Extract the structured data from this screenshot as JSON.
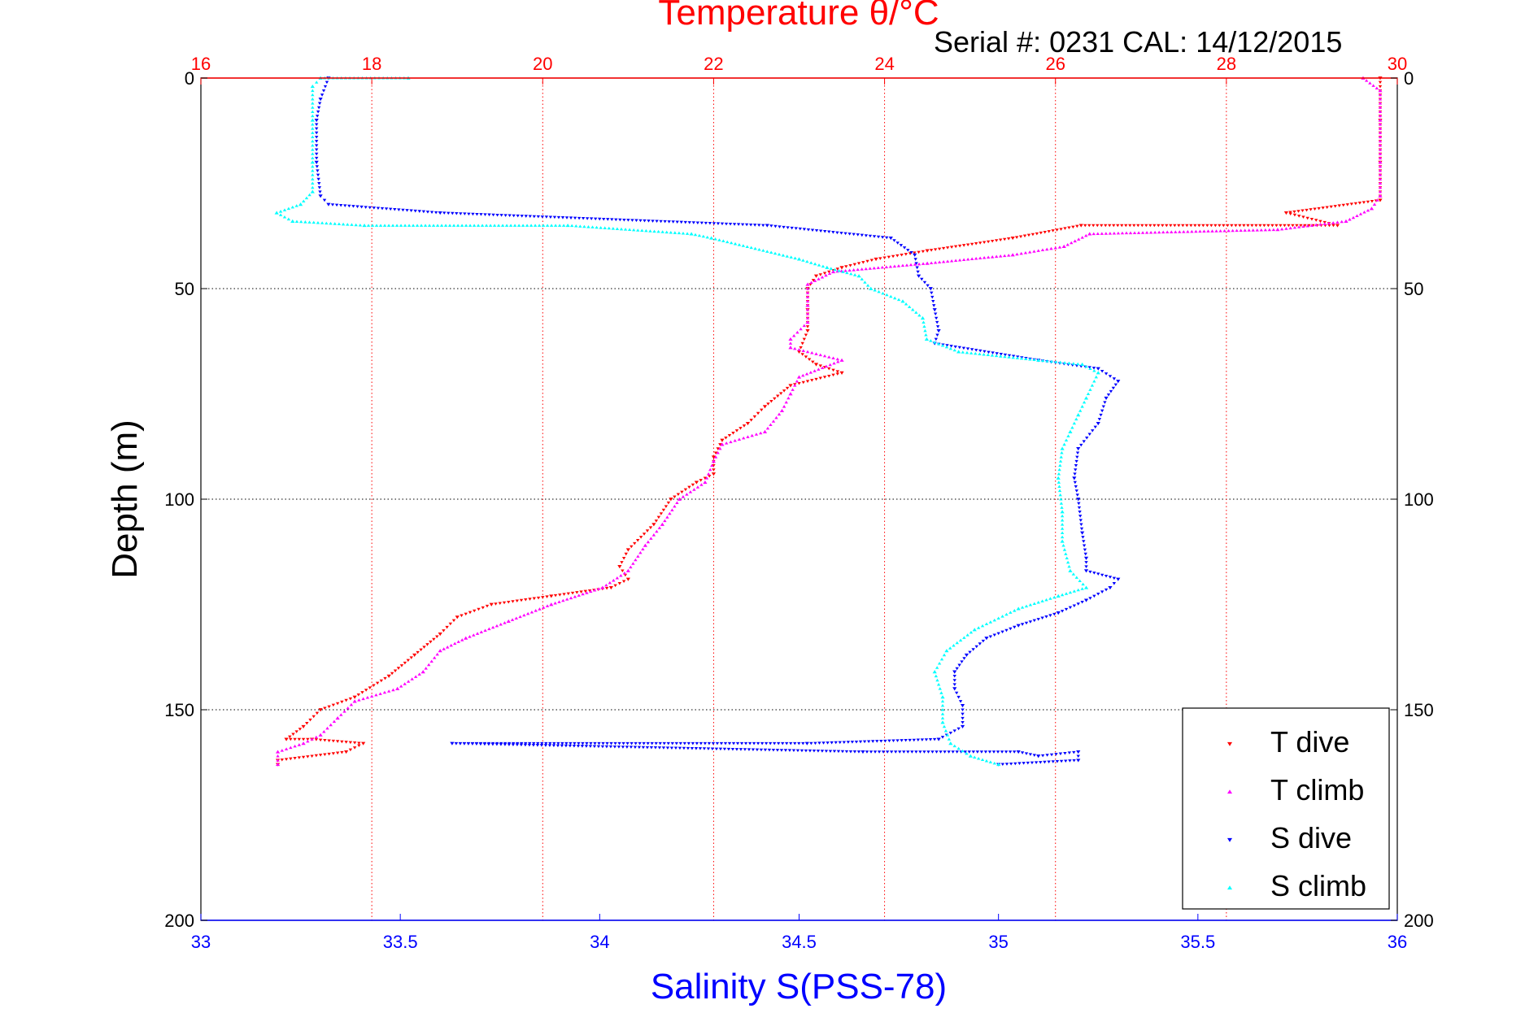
{
  "chart_data": {
    "type": "scatter",
    "title": "Temperature θ/°C",
    "subtitle": "Serial #: 0231  CAL: 14/12/2015",
    "xlabel": "Salinity S(PSS-78)",
    "ylabel": "Depth (m)",
    "x_salinity": {
      "range": [
        33,
        36
      ],
      "ticks": [
        "33",
        "33.5",
        "34",
        "34.5",
        "35",
        "35.5",
        "36"
      ],
      "tick_values": [
        33,
        33.5,
        34,
        34.5,
        35,
        35.5,
        36
      ],
      "color": "#0000ff"
    },
    "x_temperature": {
      "range": [
        16,
        30
      ],
      "ticks": [
        "16",
        "18",
        "20",
        "22",
        "24",
        "26",
        "28",
        "30"
      ],
      "tick_values": [
        16,
        18,
        20,
        22,
        24,
        26,
        28,
        30
      ],
      "color": "#ff0000"
    },
    "y": {
      "range": [
        0,
        200
      ],
      "reversed": true,
      "ticks": [
        "0",
        "50",
        "100",
        "150",
        "200"
      ],
      "tick_values": [
        0,
        50,
        100,
        150,
        200
      ]
    },
    "grid": true,
    "legend_position": "bottom-right",
    "series": [
      {
        "name": "T dive",
        "axis": "temperature",
        "color": "#ff0000",
        "marker": "triangle-down",
        "points": [
          [
            29.8,
            0
          ],
          [
            29.8,
            10
          ],
          [
            29.8,
            20
          ],
          [
            29.8,
            29
          ],
          [
            28.7,
            32
          ],
          [
            29.3,
            35
          ],
          [
            26.3,
            35
          ],
          [
            25.5,
            38
          ],
          [
            24.5,
            41
          ],
          [
            23.9,
            43
          ],
          [
            23.5,
            45
          ],
          [
            23.2,
            47
          ],
          [
            23.1,
            50
          ],
          [
            23.1,
            55
          ],
          [
            23.1,
            60
          ],
          [
            23.0,
            65
          ],
          [
            23.2,
            68
          ],
          [
            23.5,
            70
          ],
          [
            22.9,
            73
          ],
          [
            22.6,
            78
          ],
          [
            22.4,
            82
          ],
          [
            22.1,
            86
          ],
          [
            22.0,
            90
          ],
          [
            22.0,
            94
          ],
          [
            21.8,
            96
          ],
          [
            21.5,
            100
          ],
          [
            21.3,
            106
          ],
          [
            21.0,
            112
          ],
          [
            20.9,
            116
          ],
          [
            21.0,
            119
          ],
          [
            20.8,
            121
          ],
          [
            20.1,
            123
          ],
          [
            19.4,
            125
          ],
          [
            19.0,
            128
          ],
          [
            18.8,
            132
          ],
          [
            18.5,
            137
          ],
          [
            18.2,
            142
          ],
          [
            17.8,
            147
          ],
          [
            17.4,
            150
          ],
          [
            17.2,
            154
          ],
          [
            17.0,
            157
          ],
          [
            17.3,
            157
          ],
          [
            17.9,
            158
          ],
          [
            17.7,
            160
          ],
          [
            16.9,
            162
          ],
          [
            16.9,
            163
          ]
        ]
      },
      {
        "name": "T climb",
        "axis": "temperature",
        "color": "#ff00ff",
        "marker": "triangle-up",
        "points": [
          [
            16.9,
            163
          ],
          [
            16.9,
            160
          ],
          [
            17.2,
            158
          ],
          [
            17.4,
            156
          ],
          [
            17.6,
            152
          ],
          [
            17.8,
            148
          ],
          [
            18.3,
            145
          ],
          [
            18.6,
            141
          ],
          [
            18.8,
            136
          ],
          [
            19.1,
            133
          ],
          [
            19.6,
            129
          ],
          [
            20.1,
            125
          ],
          [
            20.7,
            121
          ],
          [
            21.0,
            117
          ],
          [
            21.2,
            111
          ],
          [
            21.4,
            106
          ],
          [
            21.6,
            100
          ],
          [
            21.9,
            96
          ],
          [
            22.0,
            91
          ],
          [
            22.1,
            87
          ],
          [
            22.6,
            84
          ],
          [
            22.8,
            79
          ],
          [
            22.9,
            75
          ],
          [
            23.0,
            71
          ],
          [
            23.5,
            67
          ],
          [
            22.9,
            64
          ],
          [
            22.9,
            62
          ],
          [
            23.1,
            58
          ],
          [
            23.1,
            54
          ],
          [
            23.1,
            49
          ],
          [
            23.4,
            46
          ],
          [
            24.5,
            44
          ],
          [
            25.5,
            42
          ],
          [
            26.1,
            40
          ],
          [
            26.4,
            37
          ],
          [
            28.6,
            36
          ],
          [
            29.4,
            34
          ],
          [
            29.7,
            31
          ],
          [
            29.8,
            28
          ],
          [
            29.8,
            20
          ],
          [
            29.8,
            10
          ],
          [
            29.8,
            3
          ],
          [
            29.6,
            0
          ]
        ]
      },
      {
        "name": "S dive",
        "axis": "salinity",
        "color": "#0000ff",
        "marker": "triangle-down",
        "points": [
          [
            33.32,
            0
          ],
          [
            33.3,
            5
          ],
          [
            33.29,
            10
          ],
          [
            33.29,
            20
          ],
          [
            33.3,
            28
          ],
          [
            33.32,
            30
          ],
          [
            33.6,
            32
          ],
          [
            34.42,
            35
          ],
          [
            34.73,
            38
          ],
          [
            34.79,
            42
          ],
          [
            34.8,
            47
          ],
          [
            34.83,
            50
          ],
          [
            34.84,
            55
          ],
          [
            34.85,
            60
          ],
          [
            34.84,
            63
          ],
          [
            35.1,
            67
          ],
          [
            35.25,
            69
          ],
          [
            35.3,
            72
          ],
          [
            35.27,
            76
          ],
          [
            35.25,
            82
          ],
          [
            35.2,
            88
          ],
          [
            35.19,
            95
          ],
          [
            35.2,
            100
          ],
          [
            35.21,
            108
          ],
          [
            35.22,
            114
          ],
          [
            35.22,
            117
          ],
          [
            35.3,
            119
          ],
          [
            35.28,
            121
          ],
          [
            35.22,
            124
          ],
          [
            35.15,
            127
          ],
          [
            35.05,
            130
          ],
          [
            34.97,
            133
          ],
          [
            34.92,
            137
          ],
          [
            34.89,
            141
          ],
          [
            34.89,
            145
          ],
          [
            34.91,
            149
          ],
          [
            34.91,
            154
          ],
          [
            34.85,
            157
          ],
          [
            34.52,
            158
          ],
          [
            33.63,
            158
          ],
          [
            34.66,
            160
          ],
          [
            35.05,
            160
          ],
          [
            35.1,
            161
          ],
          [
            35.2,
            160
          ],
          [
            35.2,
            162
          ],
          [
            35.0,
            163
          ]
        ]
      },
      {
        "name": "S climb",
        "axis": "salinity",
        "color": "#00ffff",
        "marker": "triangle-up",
        "points": [
          [
            35.0,
            163
          ],
          [
            34.93,
            161
          ],
          [
            34.88,
            158
          ],
          [
            34.86,
            153
          ],
          [
            34.86,
            147
          ],
          [
            34.84,
            141
          ],
          [
            34.87,
            136
          ],
          [
            34.94,
            131
          ],
          [
            35.05,
            126
          ],
          [
            35.15,
            123
          ],
          [
            35.22,
            121
          ],
          [
            35.18,
            117
          ],
          [
            35.16,
            110
          ],
          [
            35.16,
            103
          ],
          [
            35.15,
            95
          ],
          [
            35.16,
            88
          ],
          [
            35.18,
            84
          ],
          [
            35.2,
            80
          ],
          [
            35.22,
            76
          ],
          [
            35.25,
            70
          ],
          [
            35.21,
            68
          ],
          [
            35.1,
            67
          ],
          [
            34.9,
            65
          ],
          [
            34.82,
            62
          ],
          [
            34.81,
            57
          ],
          [
            34.76,
            53
          ],
          [
            34.68,
            50
          ],
          [
            34.65,
            47
          ],
          [
            34.57,
            45
          ],
          [
            34.5,
            43
          ],
          [
            34.28,
            38
          ],
          [
            34.23,
            37
          ],
          [
            33.92,
            35
          ],
          [
            33.41,
            35
          ],
          [
            33.23,
            34
          ],
          [
            33.19,
            32
          ],
          [
            33.25,
            30
          ],
          [
            33.28,
            27
          ],
          [
            33.28,
            20
          ],
          [
            33.28,
            10
          ],
          [
            33.28,
            2
          ],
          [
            33.3,
            0
          ],
          [
            33.52,
            0
          ]
        ]
      }
    ]
  }
}
